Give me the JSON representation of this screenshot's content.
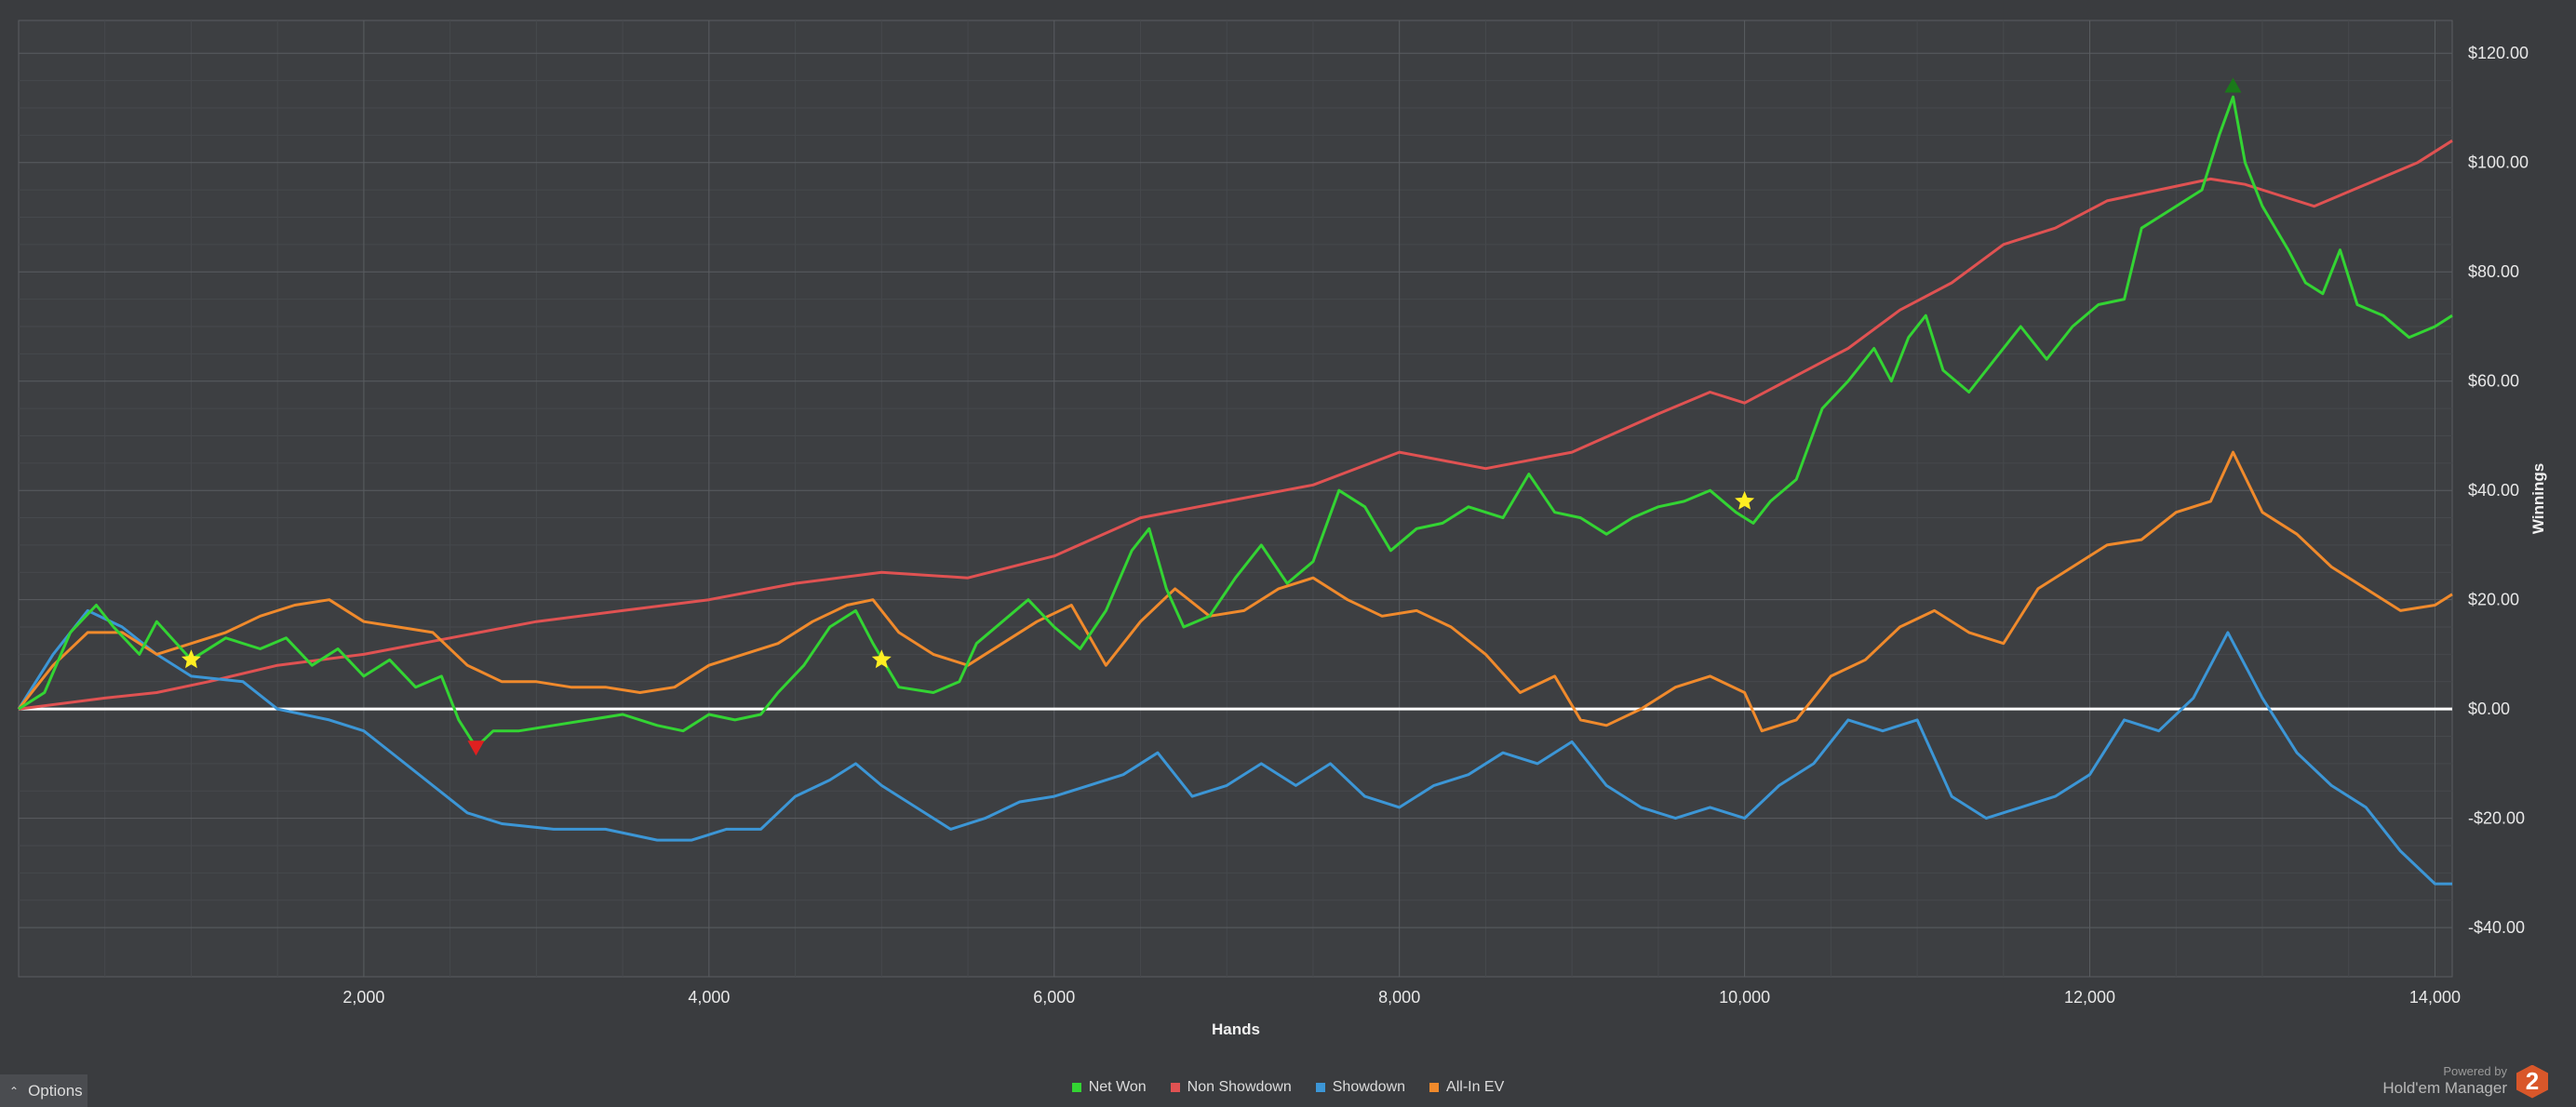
{
  "chart_data": {
    "type": "line",
    "title": "",
    "xlabel": "Hands",
    "ylabel": "Winnings",
    "xlim": [
      0,
      14100
    ],
    "ylim": [
      -49,
      126
    ],
    "x_ticks": [
      2000,
      4000,
      6000,
      8000,
      10000,
      12000,
      14000
    ],
    "x_tick_labels": [
      "2,000",
      "4,000",
      "6,000",
      "8,000",
      "10,000",
      "12,000",
      "14,000"
    ],
    "y_ticks": [
      120,
      100,
      80,
      60,
      40,
      20,
      0,
      -20,
      -40
    ],
    "y_tick_labels": [
      "$120.00",
      "$100.00",
      "$80.00",
      "$60.00",
      "$40.00",
      "$20.00",
      "$0.00",
      "-$20.00",
      "-$40.00"
    ],
    "grid": true,
    "zero_line": true,
    "legend_position": "bottom-center",
    "series": [
      {
        "name": "Net Won",
        "color": "#33d433",
        "points": [
          [
            0,
            0
          ],
          [
            150,
            3
          ],
          [
            300,
            14
          ],
          [
            450,
            19
          ],
          [
            550,
            15
          ],
          [
            700,
            10
          ],
          [
            800,
            16
          ],
          [
            1000,
            9
          ],
          [
            1200,
            13
          ],
          [
            1400,
            11
          ],
          [
            1550,
            13
          ],
          [
            1700,
            8
          ],
          [
            1850,
            11
          ],
          [
            2000,
            6
          ],
          [
            2150,
            9
          ],
          [
            2300,
            4
          ],
          [
            2450,
            6
          ],
          [
            2550,
            -2
          ],
          [
            2650,
            -7
          ],
          [
            2750,
            -4
          ],
          [
            2900,
            -4
          ],
          [
            3100,
            -3
          ],
          [
            3300,
            -2
          ],
          [
            3500,
            -1
          ],
          [
            3700,
            -3
          ],
          [
            3850,
            -4
          ],
          [
            4000,
            -1
          ],
          [
            4150,
            -2
          ],
          [
            4300,
            -1
          ],
          [
            4400,
            3
          ],
          [
            4550,
            8
          ],
          [
            4700,
            15
          ],
          [
            4850,
            18
          ],
          [
            4950,
            12
          ],
          [
            5100,
            4
          ],
          [
            5300,
            3
          ],
          [
            5450,
            5
          ],
          [
            5550,
            12
          ],
          [
            5700,
            16
          ],
          [
            5850,
            20
          ],
          [
            6000,
            15
          ],
          [
            6150,
            11
          ],
          [
            6300,
            18
          ],
          [
            6450,
            29
          ],
          [
            6550,
            33
          ],
          [
            6650,
            22
          ],
          [
            6750,
            15
          ],
          [
            6900,
            17
          ],
          [
            7050,
            24
          ],
          [
            7200,
            30
          ],
          [
            7350,
            23
          ],
          [
            7500,
            27
          ],
          [
            7650,
            40
          ],
          [
            7800,
            37
          ],
          [
            7950,
            29
          ],
          [
            8100,
            33
          ],
          [
            8250,
            34
          ],
          [
            8400,
            37
          ],
          [
            8600,
            35
          ],
          [
            8750,
            43
          ],
          [
            8900,
            36
          ],
          [
            9050,
            35
          ],
          [
            9200,
            32
          ],
          [
            9350,
            35
          ],
          [
            9500,
            37
          ],
          [
            9650,
            38
          ],
          [
            9800,
            40
          ],
          [
            9950,
            36
          ],
          [
            10050,
            34
          ],
          [
            10150,
            38
          ],
          [
            10300,
            42
          ],
          [
            10450,
            55
          ],
          [
            10600,
            60
          ],
          [
            10750,
            66
          ],
          [
            10850,
            60
          ],
          [
            10950,
            68
          ],
          [
            11050,
            72
          ],
          [
            11150,
            62
          ],
          [
            11300,
            58
          ],
          [
            11450,
            64
          ],
          [
            11600,
            70
          ],
          [
            11750,
            64
          ],
          [
            11900,
            70
          ],
          [
            12050,
            74
          ],
          [
            12200,
            75
          ],
          [
            12300,
            88
          ],
          [
            12450,
            91
          ],
          [
            12550,
            93
          ],
          [
            12650,
            95
          ],
          [
            12750,
            105
          ],
          [
            12830,
            112
          ],
          [
            12900,
            100
          ],
          [
            13000,
            92
          ],
          [
            13150,
            84
          ],
          [
            13250,
            78
          ],
          [
            13350,
            76
          ],
          [
            13450,
            84
          ],
          [
            13550,
            74
          ],
          [
            13700,
            72
          ],
          [
            13850,
            68
          ],
          [
            14000,
            70
          ],
          [
            14100,
            72
          ]
        ]
      },
      {
        "name": "Non Showdown",
        "color": "#e05252",
        "points": [
          [
            0,
            0
          ],
          [
            500,
            2
          ],
          [
            800,
            3
          ],
          [
            1100,
            5
          ],
          [
            1500,
            8
          ],
          [
            2000,
            10
          ],
          [
            2500,
            13
          ],
          [
            3000,
            16
          ],
          [
            3500,
            18
          ],
          [
            4000,
            20
          ],
          [
            4500,
            23
          ],
          [
            5000,
            25
          ],
          [
            5500,
            24
          ],
          [
            6000,
            28
          ],
          [
            6500,
            35
          ],
          [
            7000,
            38
          ],
          [
            7500,
            41
          ],
          [
            8000,
            47
          ],
          [
            8500,
            44
          ],
          [
            9000,
            47
          ],
          [
            9500,
            54
          ],
          [
            9800,
            58
          ],
          [
            10000,
            56
          ],
          [
            10300,
            61
          ],
          [
            10600,
            66
          ],
          [
            10900,
            73
          ],
          [
            11200,
            78
          ],
          [
            11500,
            85
          ],
          [
            11800,
            88
          ],
          [
            12100,
            93
          ],
          [
            12400,
            95
          ],
          [
            12700,
            97
          ],
          [
            12900,
            96
          ],
          [
            13100,
            94
          ],
          [
            13300,
            92
          ],
          [
            13600,
            96
          ],
          [
            13900,
            100
          ],
          [
            14100,
            104
          ]
        ]
      },
      {
        "name": "Showdown",
        "color": "#3c96d6",
        "points": [
          [
            0,
            0
          ],
          [
            200,
            10
          ],
          [
            400,
            18
          ],
          [
            600,
            15
          ],
          [
            800,
            10
          ],
          [
            1000,
            6
          ],
          [
            1300,
            5
          ],
          [
            1500,
            0
          ],
          [
            1800,
            -2
          ],
          [
            2000,
            -4
          ],
          [
            2200,
            -9
          ],
          [
            2400,
            -14
          ],
          [
            2600,
            -19
          ],
          [
            2800,
            -21
          ],
          [
            3100,
            -22
          ],
          [
            3400,
            -22
          ],
          [
            3700,
            -24
          ],
          [
            3900,
            -24
          ],
          [
            4100,
            -22
          ],
          [
            4300,
            -22
          ],
          [
            4500,
            -16
          ],
          [
            4700,
            -13
          ],
          [
            4850,
            -10
          ],
          [
            5000,
            -14
          ],
          [
            5200,
            -18
          ],
          [
            5400,
            -22
          ],
          [
            5600,
            -20
          ],
          [
            5800,
            -17
          ],
          [
            6000,
            -16
          ],
          [
            6200,
            -14
          ],
          [
            6400,
            -12
          ],
          [
            6600,
            -8
          ],
          [
            6800,
            -16
          ],
          [
            7000,
            -14
          ],
          [
            7200,
            -10
          ],
          [
            7400,
            -14
          ],
          [
            7600,
            -10
          ],
          [
            7800,
            -16
          ],
          [
            8000,
            -18
          ],
          [
            8200,
            -14
          ],
          [
            8400,
            -12
          ],
          [
            8600,
            -8
          ],
          [
            8800,
            -10
          ],
          [
            9000,
            -6
          ],
          [
            9200,
            -14
          ],
          [
            9400,
            -18
          ],
          [
            9600,
            -20
          ],
          [
            9800,
            -18
          ],
          [
            10000,
            -20
          ],
          [
            10200,
            -14
          ],
          [
            10400,
            -10
          ],
          [
            10600,
            -2
          ],
          [
            10800,
            -4
          ],
          [
            11000,
            -2
          ],
          [
            11200,
            -16
          ],
          [
            11400,
            -20
          ],
          [
            11600,
            -18
          ],
          [
            11800,
            -16
          ],
          [
            12000,
            -12
          ],
          [
            12200,
            -2
          ],
          [
            12400,
            -4
          ],
          [
            12600,
            2
          ],
          [
            12800,
            14
          ],
          [
            13000,
            2
          ],
          [
            13200,
            -8
          ],
          [
            13400,
            -14
          ],
          [
            13600,
            -18
          ],
          [
            13800,
            -26
          ],
          [
            14000,
            -32
          ],
          [
            14100,
            -32
          ]
        ]
      },
      {
        "name": "All-In EV",
        "color": "#f08a2c",
        "points": [
          [
            0,
            0
          ],
          [
            200,
            8
          ],
          [
            400,
            14
          ],
          [
            600,
            14
          ],
          [
            800,
            10
          ],
          [
            1000,
            12
          ],
          [
            1200,
            14
          ],
          [
            1400,
            17
          ],
          [
            1600,
            19
          ],
          [
            1800,
            20
          ],
          [
            2000,
            16
          ],
          [
            2200,
            15
          ],
          [
            2400,
            14
          ],
          [
            2600,
            8
          ],
          [
            2800,
            5
          ],
          [
            3000,
            5
          ],
          [
            3200,
            4
          ],
          [
            3400,
            4
          ],
          [
            3600,
            3
          ],
          [
            3800,
            4
          ],
          [
            4000,
            8
          ],
          [
            4200,
            10
          ],
          [
            4400,
            12
          ],
          [
            4600,
            16
          ],
          [
            4800,
            19
          ],
          [
            4950,
            20
          ],
          [
            5100,
            14
          ],
          [
            5300,
            10
          ],
          [
            5500,
            8
          ],
          [
            5700,
            12
          ],
          [
            5900,
            16
          ],
          [
            6100,
            19
          ],
          [
            6300,
            8
          ],
          [
            6500,
            16
          ],
          [
            6700,
            22
          ],
          [
            6900,
            17
          ],
          [
            7100,
            18
          ],
          [
            7300,
            22
          ],
          [
            7500,
            24
          ],
          [
            7700,
            20
          ],
          [
            7900,
            17
          ],
          [
            8100,
            18
          ],
          [
            8300,
            15
          ],
          [
            8500,
            10
          ],
          [
            8700,
            3
          ],
          [
            8900,
            6
          ],
          [
            9050,
            -2
          ],
          [
            9200,
            -3
          ],
          [
            9400,
            0
          ],
          [
            9600,
            4
          ],
          [
            9800,
            6
          ],
          [
            10000,
            3
          ],
          [
            10100,
            -4
          ],
          [
            10300,
            -2
          ],
          [
            10500,
            6
          ],
          [
            10700,
            9
          ],
          [
            10900,
            15
          ],
          [
            11100,
            18
          ],
          [
            11300,
            14
          ],
          [
            11500,
            12
          ],
          [
            11700,
            22
          ],
          [
            11900,
            26
          ],
          [
            12100,
            30
          ],
          [
            12300,
            31
          ],
          [
            12500,
            36
          ],
          [
            12700,
            38
          ],
          [
            12830,
            47
          ],
          [
            13000,
            36
          ],
          [
            13200,
            32
          ],
          [
            13400,
            26
          ],
          [
            13600,
            22
          ],
          [
            13800,
            18
          ],
          [
            14000,
            19
          ],
          [
            14100,
            21
          ]
        ]
      }
    ],
    "markers": [
      {
        "type": "star",
        "x": 1000,
        "y": 9,
        "color": "#ffee22"
      },
      {
        "type": "star",
        "x": 5000,
        "y": 9,
        "color": "#ffee22"
      },
      {
        "type": "star",
        "x": 10000,
        "y": 38,
        "color": "#ffee22"
      },
      {
        "type": "triangle-down",
        "x": 2650,
        "y": -7,
        "color": "#e02020"
      },
      {
        "type": "triangle-up",
        "x": 12830,
        "y": 114,
        "color": "#1a7a1a"
      }
    ]
  },
  "legend": {
    "items": [
      {
        "label": "Net Won",
        "color": "#33d433"
      },
      {
        "label": "Non Showdown",
        "color": "#e05252"
      },
      {
        "label": "Showdown",
        "color": "#3c96d6"
      },
      {
        "label": "All-In EV",
        "color": "#f08a2c"
      }
    ]
  },
  "options": {
    "label": "Options",
    "icon": "chevron-up-icon"
  },
  "branding": {
    "powered_by": "Powered by",
    "name": "Hold'em Manager",
    "logo_text": "2"
  }
}
